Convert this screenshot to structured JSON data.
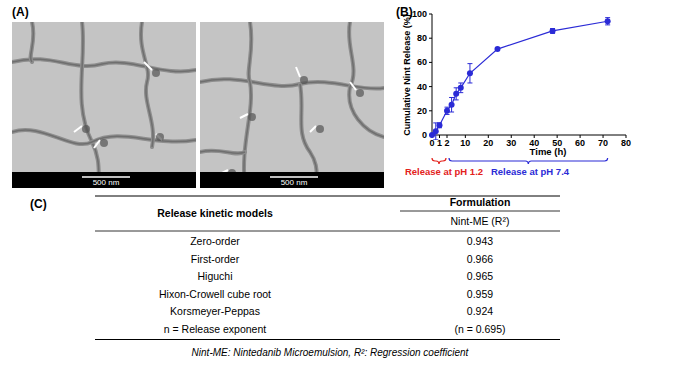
{
  "panels": {
    "a": "(A)",
    "b": "(B)",
    "c": "(C)"
  },
  "micrographs": [
    {
      "scale_label": "500 nm"
    },
    {
      "scale_label": "500 nm"
    }
  ],
  "chart_data": {
    "type": "line",
    "x_label": "Time (h)",
    "y_label": "Cumulative Nint Release (%)",
    "x": [
      0,
      0.5,
      1,
      2,
      4,
      6,
      8,
      12,
      24,
      48,
      72
    ],
    "values": [
      0,
      3,
      8,
      20,
      25,
      34,
      39,
      51,
      71,
      86,
      94
    ],
    "errors": [
      0,
      7,
      2,
      3,
      6,
      5,
      4,
      8,
      1,
      2,
      3
    ],
    "color": "#2b2bd6",
    "marker": "circle",
    "xlim": [
      0,
      80
    ],
    "xticks": [
      0,
      1,
      2,
      10,
      20,
      30,
      40,
      50,
      60,
      70,
      80
    ],
    "ylim": [
      0,
      100
    ],
    "yticks": [
      0,
      20,
      40,
      60,
      80,
      100
    ],
    "grid": false,
    "annotations": [
      {
        "text": "Release at pH 1.2",
        "x_range": [
          0,
          2
        ],
        "color": "#e3221c"
      },
      {
        "text": "Release at pH 7.4",
        "x_range": [
          2,
          72
        ],
        "color": "#2b2bd6"
      }
    ]
  },
  "table": {
    "header": [
      "Release kinetic models",
      "Formulation"
    ],
    "subheader": "Nint-ME (R²)",
    "rows": [
      [
        "Zero-order",
        "0.943"
      ],
      [
        "First-order",
        "0.966"
      ],
      [
        "Higuchi",
        "0.965"
      ],
      [
        "Hixon-Crowell cube root",
        "0.959"
      ],
      [
        "Korsmeyer-Peppas",
        "0.924"
      ],
      [
        "n = Release exponent",
        "(n = 0.695)"
      ]
    ],
    "footnote": "Nint-ME: Nintedanib Microemulsion, R²: Regression coefficient"
  }
}
